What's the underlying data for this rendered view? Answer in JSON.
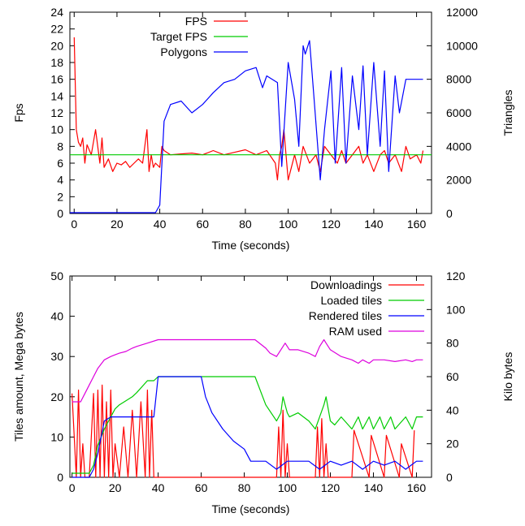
{
  "chart_data": [
    {
      "type": "line",
      "xlabel": "Time (seconds)",
      "ylabel": "Fps",
      "y2label": "Triangles",
      "xlim": [
        -2,
        167
      ],
      "ylim": [
        0,
        24
      ],
      "y2lim": [
        0,
        12000
      ],
      "xticks": [
        "0",
        "20",
        "40",
        "60",
        "80",
        "100",
        "120",
        "140",
        "160"
      ],
      "xtick_values": [
        0,
        20,
        40,
        60,
        80,
        100,
        120,
        140,
        160
      ],
      "yticks": [
        "0",
        "2",
        "4",
        "6",
        "8",
        "10",
        "12",
        "14",
        "16",
        "18",
        "20",
        "22",
        "24"
      ],
      "ytick_values": [
        0,
        2,
        4,
        6,
        8,
        10,
        12,
        14,
        16,
        18,
        20,
        22,
        24
      ],
      "y2ticks": [
        "0",
        "2000",
        "4000",
        "6000",
        "8000",
        "10000",
        "12000"
      ],
      "y2tick_values": [
        0,
        2000,
        4000,
        6000,
        8000,
        10000,
        12000
      ],
      "legend_position": "top-left",
      "series": [
        {
          "name": "FPS",
          "color": "#ff0000",
          "axis": "y",
          "x": [
            0,
            1,
            2,
            3,
            4,
            5,
            6,
            8,
            10,
            12,
            13,
            14,
            16,
            18,
            20,
            22,
            24,
            26,
            28,
            30,
            32,
            34,
            35,
            36,
            37,
            38,
            40,
            41,
            42,
            45,
            50,
            55,
            60,
            65,
            70,
            75,
            80,
            85,
            90,
            94,
            95,
            96,
            97,
            98,
            100,
            103,
            105,
            107,
            110,
            113,
            115,
            117,
            120,
            123,
            125,
            127,
            130,
            133,
            135,
            137,
            140,
            143,
            145,
            147,
            150,
            153,
            155,
            157,
            160,
            162,
            163
          ],
          "y": [
            21,
            10,
            8.5,
            8,
            9,
            6,
            8.2,
            7,
            10,
            6,
            9,
            5.5,
            6.5,
            5,
            6,
            5.8,
            6.2,
            5.5,
            6,
            6.5,
            6,
            10,
            5,
            7,
            5.5,
            6,
            5.5,
            8,
            7.5,
            7,
            7.1,
            7.2,
            7,
            7.5,
            7,
            7.3,
            7.6,
            7,
            7.5,
            6,
            4,
            7,
            8,
            10,
            4,
            7,
            5,
            8,
            6,
            7,
            5,
            8,
            7,
            6,
            7.5,
            6,
            7,
            8,
            6,
            7,
            5,
            7,
            7.5,
            6,
            7,
            5,
            8,
            6.5,
            7,
            6,
            7.5
          ]
        },
        {
          "name": "Target FPS",
          "color": "#00cc00",
          "axis": "y",
          "x": [
            -2,
            167
          ],
          "y": [
            7,
            7
          ]
        },
        {
          "name": "Polygons",
          "color": "#0000ff",
          "axis": "y2",
          "x": [
            -2,
            2,
            5,
            35,
            38,
            40,
            42,
            45,
            50,
            55,
            60,
            65,
            70,
            75,
            80,
            85,
            88,
            90,
            95,
            97,
            100,
            103,
            105,
            107,
            108,
            110,
            112,
            115,
            117,
            120,
            122,
            125,
            127,
            130,
            133,
            135,
            137,
            140,
            143,
            145,
            147,
            150,
            152,
            155,
            157,
            160,
            163
          ],
          "y2": [
            50,
            50,
            50,
            50,
            50,
            500,
            5500,
            6500,
            6700,
            6000,
            6500,
            7200,
            7800,
            8000,
            8500,
            8700,
            7500,
            8200,
            7800,
            2800,
            9000,
            6800,
            4000,
            10000,
            9500,
            10300,
            7000,
            2000,
            5000,
            8500,
            3000,
            8700,
            3000,
            8200,
            5000,
            8800,
            3500,
            9000,
            4000,
            8500,
            2500,
            8200,
            6000,
            8000,
            8000,
            8000,
            8000
          ]
        }
      ]
    },
    {
      "type": "line",
      "xlabel": "Time (seconds)",
      "ylabel": "Tiles amount, Mega bytes",
      "y2label": "Kilo bytes",
      "xlim": [
        -1,
        167
      ],
      "ylim": [
        0,
        50
      ],
      "y2lim": [
        0,
        120
      ],
      "xticks": [
        "0",
        "20",
        "40",
        "60",
        "80",
        "100",
        "120",
        "140",
        "160"
      ],
      "xtick_values": [
        0,
        20,
        40,
        60,
        80,
        100,
        120,
        140,
        160
      ],
      "yticks": [
        "0",
        "10",
        "20",
        "30",
        "40",
        "50"
      ],
      "ytick_values": [
        0,
        10,
        20,
        30,
        40,
        50
      ],
      "y2ticks": [
        "0",
        "20",
        "40",
        "60",
        "80",
        "100",
        "120"
      ],
      "y2tick_values": [
        0,
        20,
        40,
        60,
        80,
        100,
        120
      ],
      "legend_position": "top-right",
      "series": [
        {
          "name": "Downloadings",
          "color": "#ff0000",
          "axis": "y2",
          "x": [
            0,
            2,
            3,
            4,
            5,
            6,
            8,
            10,
            11,
            12,
            13,
            14,
            15,
            16,
            17,
            18,
            19,
            20,
            22,
            24,
            26,
            28,
            30,
            32,
            34,
            35,
            36,
            37,
            38,
            95,
            96,
            97,
            98,
            99,
            100,
            101,
            113,
            114,
            115,
            116,
            117,
            118,
            119,
            130,
            131,
            138,
            139,
            145,
            146,
            152,
            153,
            158,
            159
          ],
          "y2": [
            50,
            0,
            52,
            0,
            20,
            0,
            0,
            50,
            0,
            52,
            0,
            55,
            0,
            45,
            0,
            52,
            0,
            20,
            0,
            30,
            0,
            40,
            0,
            45,
            0,
            52,
            0,
            40,
            0,
            0,
            30,
            0,
            40,
            0,
            20,
            0,
            0,
            30,
            0,
            35,
            0,
            20,
            0,
            0,
            28,
            0,
            25,
            0,
            25,
            0,
            20,
            0,
            28
          ]
        },
        {
          "name": "Loaded tiles",
          "color": "#00cc00",
          "axis": "y",
          "x": [
            0,
            8,
            10,
            12,
            15,
            18,
            20,
            22,
            25,
            28,
            30,
            35,
            38,
            40,
            60,
            80,
            85,
            90,
            95,
            97,
            98,
            100,
            101,
            105,
            110,
            113,
            115,
            117,
            118,
            120,
            122,
            125,
            130,
            133,
            135,
            138,
            140,
            143,
            145,
            148,
            150,
            155,
            158,
            160,
            163
          ],
          "y": [
            1,
            1,
            3,
            8,
            12,
            15,
            17,
            18,
            19,
            20,
            21,
            24,
            24,
            25,
            25,
            25,
            25,
            18,
            14,
            16,
            20,
            16,
            15,
            16,
            14,
            12,
            15,
            18,
            20,
            14,
            13,
            15,
            12,
            15,
            12,
            15,
            12,
            15,
            12,
            15,
            12,
            15,
            12,
            15,
            15
          ]
        },
        {
          "name": "Rendered tiles",
          "color": "#0000ff",
          "axis": "y",
          "x": [
            0,
            8,
            10,
            12,
            15,
            18,
            20,
            22,
            25,
            28,
            30,
            35,
            38,
            40,
            60,
            62,
            65,
            70,
            75,
            80,
            83,
            85,
            90,
            95,
            100,
            105,
            110,
            115,
            120,
            125,
            130,
            135,
            140,
            145,
            150,
            155,
            160,
            163
          ],
          "y": [
            0,
            0,
            2,
            6,
            14,
            15,
            15,
            15,
            15,
            15,
            15,
            15,
            15,
            25,
            25,
            20,
            16,
            12,
            9,
            7,
            4,
            4,
            4,
            2,
            4,
            4,
            4,
            2,
            4,
            3,
            4,
            2,
            4,
            3,
            4,
            2,
            4,
            4
          ]
        },
        {
          "name": "RAM used",
          "color": "#dd00dd",
          "axis": "y2",
          "x": [
            0,
            4,
            6,
            8,
            10,
            12,
            15,
            18,
            20,
            22,
            25,
            28,
            30,
            35,
            40,
            60,
            80,
            85,
            90,
            92,
            95,
            97,
            99,
            100,
            101,
            105,
            110,
            113,
            115,
            117,
            118,
            120,
            125,
            130,
            133,
            135,
            138,
            140,
            145,
            150,
            155,
            158,
            160,
            163
          ],
          "y2": [
            45,
            45,
            50,
            55,
            60,
            65,
            70,
            72,
            73,
            74,
            75,
            77,
            78,
            80,
            82,
            82,
            82,
            82,
            77,
            74,
            72,
            76,
            80,
            78,
            76,
            76,
            74,
            72,
            78,
            82,
            80,
            76,
            72,
            70,
            68,
            70,
            68,
            70,
            70,
            69,
            70,
            69,
            70,
            70
          ]
        }
      ]
    }
  ]
}
